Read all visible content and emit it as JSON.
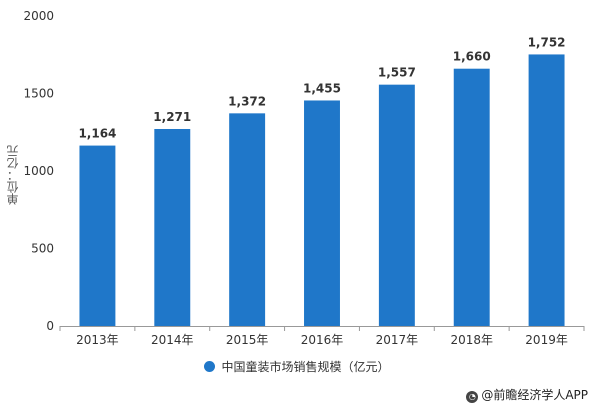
{
  "chart_data": {
    "type": "bar",
    "categories": [
      "2013年",
      "2014年",
      "2015年",
      "2016年",
      "2017年",
      "2018年",
      "2019年"
    ],
    "series": [
      {
        "name": "中国童装市场销售规模（亿元）",
        "values": [
          1164,
          1271,
          1372,
          1455,
          1557,
          1660,
          1752
        ]
      }
    ],
    "data_labels": [
      "1,164",
      "1,271",
      "1,372",
      "1,455",
      "1,557",
      "1,660",
      "1,752"
    ],
    "ylabel": "单位：亿元",
    "xlabel": "",
    "ylim": [
      0,
      2000
    ],
    "yticks": [
      0,
      500,
      1000,
      1500,
      2000
    ],
    "ytick_labels": [
      "0",
      "500",
      "1000",
      "1500",
      "2000"
    ],
    "grid": false,
    "legend_position": "bottom",
    "bar_color": "#1f77c9",
    "credit": "@前瞻经济学人APP"
  }
}
